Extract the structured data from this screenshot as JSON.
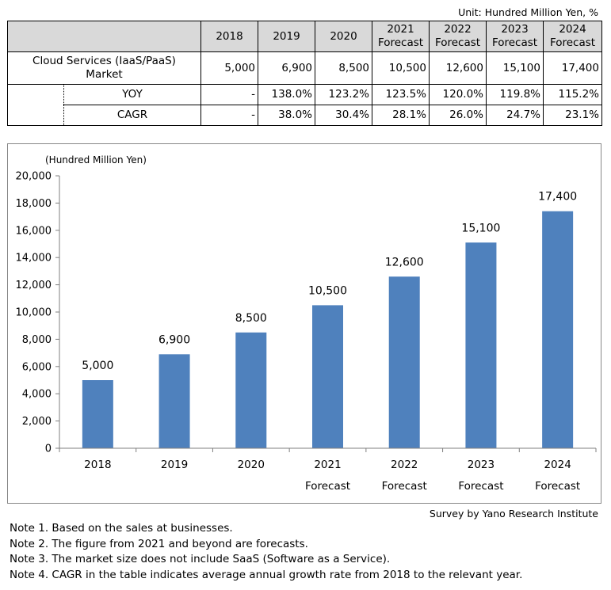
{
  "unit_label": "Unit: Hundred Million Yen, %",
  "table": {
    "columns": [
      {
        "line1": "2018",
        "line2": ""
      },
      {
        "line1": "2019",
        "line2": ""
      },
      {
        "line1": "2020",
        "line2": ""
      },
      {
        "line1": "2021",
        "line2": "Forecast"
      },
      {
        "line1": "2022",
        "line2": "Forecast"
      },
      {
        "line1": "2023",
        "line2": "Forecast"
      },
      {
        "line1": "2024",
        "line2": "Forecast"
      }
    ],
    "market_label_line1": "Cloud Services (IaaS/PaaS)",
    "market_label_line2": "Market",
    "market_values": [
      "5,000",
      "6,900",
      "8,500",
      "10,500",
      "12,600",
      "15,100",
      "17,400"
    ],
    "yoy_label": "YOY",
    "yoy_values": [
      "-",
      "138.0%",
      "123.2%",
      "123.5%",
      "120.0%",
      "119.8%",
      "115.2%"
    ],
    "cagr_label": "CAGR",
    "cagr_values": [
      "-",
      "38.0%",
      "30.4%",
      "28.1%",
      "26.0%",
      "24.7%",
      "23.1%"
    ]
  },
  "chart_data": {
    "type": "bar",
    "ylabel": "(Hundred Million Yen)",
    "categories": [
      {
        "line1": "2018",
        "line2": ""
      },
      {
        "line1": "2019",
        "line2": ""
      },
      {
        "line1": "2020",
        "line2": ""
      },
      {
        "line1": "2021",
        "line2": "Forecast"
      },
      {
        "line1": "2022",
        "line2": "Forecast"
      },
      {
        "line1": "2023",
        "line2": "Forecast"
      },
      {
        "line1": "2024",
        "line2": "Forecast"
      }
    ],
    "values": [
      5000,
      6900,
      8500,
      10500,
      12600,
      15100,
      17400
    ],
    "value_labels": [
      "5,000",
      "6,900",
      "8,500",
      "10,500",
      "12,600",
      "15,100",
      "17,400"
    ],
    "ylim": [
      0,
      20000
    ],
    "yticks": [
      0,
      2000,
      4000,
      6000,
      8000,
      10000,
      12000,
      14000,
      16000,
      18000,
      20000
    ],
    "ytick_labels": [
      "0",
      "2,000",
      "4,000",
      "6,000",
      "8,000",
      "10,000",
      "12,000",
      "14,000",
      "16,000",
      "18,000",
      "20,000"
    ],
    "bar_color": "#4f81bd",
    "grid": false
  },
  "source": "Survey by Yano Research Institute",
  "notes": [
    "Note 1.  Based on the sales at businesses.",
    "Note 2.  The figure from 2021 and beyond are forecasts.",
    "Note 3.  The market size does not include SaaS (Software as a Service).",
    "Note 4.  CAGR in the table indicates average annual growth rate from 2018 to the relevant year."
  ]
}
